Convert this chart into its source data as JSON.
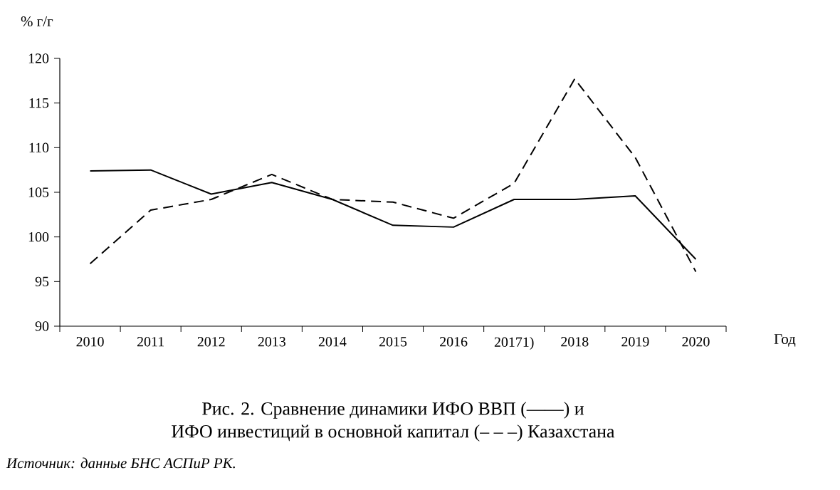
{
  "chart_data": {
    "type": "line",
    "title": "Рис. 2. Сравнение динамики ИФО ВВП (——) и",
    "subtitle": "ИФО инвестиций в основной капитал (– – –) Казахстана",
    "ylabel": "% г/г",
    "xlabel": "Год",
    "annotations": [
      "*Источник: данные БНС АСПиР РК.*"
    ],
    "categories": [
      "2010",
      "2011",
      "2012",
      "2013",
      "2014",
      "2015",
      "2016",
      "20171)",
      "2018",
      "2019",
      "2020"
    ],
    "series": [
      {
        "color": "#000000",
        "line_style": "solid",
        "values": [
          107.4,
          107.5,
          104.8,
          106.1,
          104.2,
          101.3,
          101.1,
          104.2,
          104.2,
          104.6,
          97.5
        ]
      },
      {
        "color": "#000000",
        "line_style": "dashed",
        "values": [
          97.0,
          103.0,
          104.2,
          107.0,
          104.2,
          103.9,
          102.1,
          106.0,
          117.7,
          108.9,
          96.1
        ]
      }
    ],
    "ylim": [
      90,
      120
    ],
    "yticks": [
      90,
      95,
      100,
      105,
      110,
      115,
      120
    ],
    "grid": false,
    "marker": "none"
  }
}
